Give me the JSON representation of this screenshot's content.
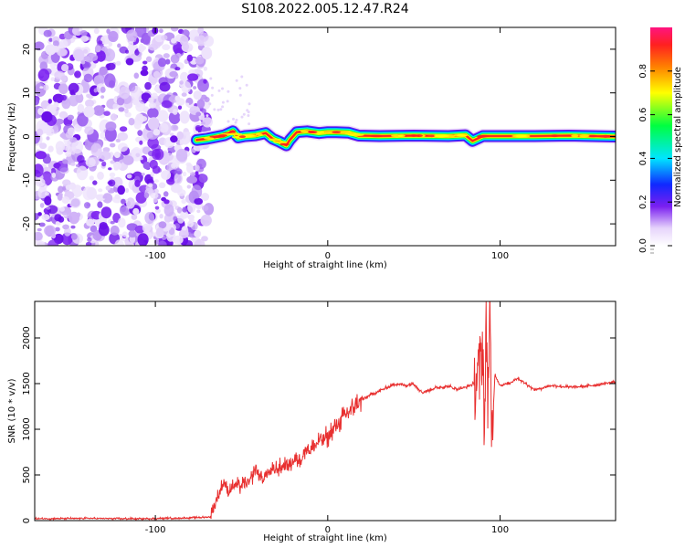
{
  "title": "S108.2022.005.12.47.R24",
  "chart_data": [
    {
      "type": "heatmap",
      "xlabel": "Height of straight line (km)",
      "ylabel": "Frequency (Hz)",
      "xlim": [
        -170,
        167
      ],
      "ylim": [
        -25,
        25
      ],
      "xticks": [
        -100,
        0,
        100
      ],
      "yticks": [
        -20,
        -10,
        0,
        10,
        20
      ],
      "noise_region_x": [
        -170,
        -75
      ],
      "signal_ridge": {
        "x": [
          -76,
          -70,
          -60,
          -55,
          -52,
          -48,
          -42,
          -36,
          -32,
          -28,
          -24,
          -22,
          -18,
          -12,
          -5,
          0,
          5,
          12,
          18,
          30,
          50,
          70,
          80,
          84,
          90,
          100,
          120,
          140,
          167
        ],
        "y": [
          -0.8,
          -0.5,
          0.3,
          1.2,
          -0.2,
          0.1,
          0.3,
          0.8,
          -0.5,
          -1.2,
          -2.0,
          -0.8,
          1.0,
          1.2,
          0.8,
          1.0,
          1.0,
          0.9,
          0.2,
          0.1,
          0.2,
          0.1,
          0.3,
          -1.0,
          0.1,
          0.1,
          0.1,
          0.2,
          0.0
        ]
      },
      "colorbar": {
        "label": "Normalized spectral amplitude",
        "ticks": [
          "0.0",
          "0.2",
          "0.4",
          "0.6",
          "0.8"
        ],
        "range": [
          0,
          1
        ],
        "colors": [
          "#ffffff",
          "#ede0fb",
          "#7a1ff0",
          "#1028ff",
          "#00e5ff",
          "#00ff40",
          "#ffff00",
          "#ff8000",
          "#ff2020",
          "#ff1480"
        ]
      }
    },
    {
      "type": "line",
      "xlabel": "Height of straight line (km)",
      "ylabel": "SNR (10 * v/v)",
      "xlim": [
        -170,
        167
      ],
      "ylim": [
        0,
        2400
      ],
      "xticks": [
        -100,
        0,
        100
      ],
      "yticks": [
        0,
        500,
        1000,
        1500,
        2000
      ],
      "color": "#e83030",
      "series": [
        {
          "x": [
            -170,
            -140,
            -110,
            -80,
            -68,
            -65,
            -62,
            -60,
            -58,
            -55,
            -50,
            -45,
            -42,
            -38,
            -35,
            -30,
            -25,
            -20,
            -15,
            -12,
            -10,
            -5,
            0,
            5,
            10,
            15,
            20,
            25,
            30,
            35,
            40,
            45,
            50,
            55,
            60,
            65,
            70,
            75,
            80,
            85,
            88,
            90,
            91,
            92,
            93,
            94,
            95,
            97,
            100,
            105,
            110,
            115,
            120,
            130,
            140,
            150,
            160,
            167
          ],
          "y": [
            20,
            25,
            20,
            30,
            40,
            200,
            350,
            420,
            300,
            380,
            380,
            420,
            580,
            450,
            520,
            560,
            600,
            650,
            700,
            800,
            760,
            870,
            920,
            1050,
            1150,
            1250,
            1320,
            1380,
            1420,
            1460,
            1500,
            1480,
            1500,
            1400,
            1440,
            1460,
            1470,
            1440,
            1460,
            1500,
            1600,
            1950,
            900,
            2200,
            1300,
            2400,
            800,
            1600,
            1480,
            1500,
            1560,
            1500,
            1430,
            1480,
            1460,
            1470,
            1500,
            1520
          ]
        }
      ]
    }
  ]
}
